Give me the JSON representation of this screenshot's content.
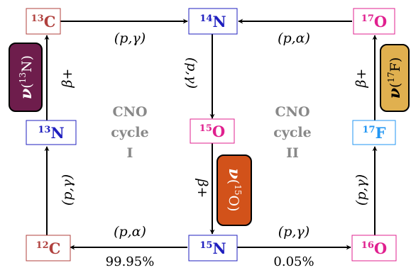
{
  "nuclides": {
    "c13": {
      "mass": "13",
      "symbol": "C",
      "color": "#b0413e"
    },
    "n14": {
      "mass": "14",
      "symbol": "N",
      "color": "#1f1fbf"
    },
    "o17": {
      "mass": "17",
      "symbol": "O",
      "color": "#e0208f"
    },
    "n13": {
      "mass": "13",
      "symbol": "N",
      "color": "#1f1fbf"
    },
    "o15": {
      "mass": "15",
      "symbol": "O",
      "color": "#e0208f"
    },
    "f17": {
      "mass": "17",
      "symbol": "F",
      "color": "#2196f3"
    },
    "c12": {
      "mass": "12",
      "symbol": "C",
      "color": "#b0413e"
    },
    "n15": {
      "mass": "15",
      "symbol": "N",
      "color": "#1f1fbf"
    },
    "o16": {
      "mass": "16",
      "symbol": "O",
      "color": "#e0208f"
    }
  },
  "reactions": {
    "c13_n14": "(p,γ)",
    "o17_n14": "(p,α)",
    "n14_o15": "(p,γ)",
    "c12_n13": "(p,γ)",
    "o16_f17": "(p,γ)",
    "n15_c12": "(p,α)",
    "n15_o16": "(p,γ)",
    "n13_c13": "β+",
    "f17_o17": "β+",
    "o15_n15": "β+"
  },
  "branching": {
    "cycle1": "99.95%",
    "cycle2": "0.05%"
  },
  "cycles": {
    "one": [
      "CNO",
      "cycle",
      "I"
    ],
    "two": [
      "CNO",
      "cycle",
      "II"
    ]
  },
  "neutrinos": {
    "n13": {
      "symbol": "ν",
      "mass": "13",
      "element": "N",
      "color": "#6e1d4c"
    },
    "o15": {
      "symbol": "ν",
      "mass": "15",
      "element": "O",
      "color": "#d2521a"
    },
    "f17": {
      "symbol": "ν",
      "mass": "17",
      "element": "F",
      "color": "#e0b04f"
    }
  },
  "colors": {
    "cycle_text": "#888888",
    "arrow": "#000000"
  }
}
